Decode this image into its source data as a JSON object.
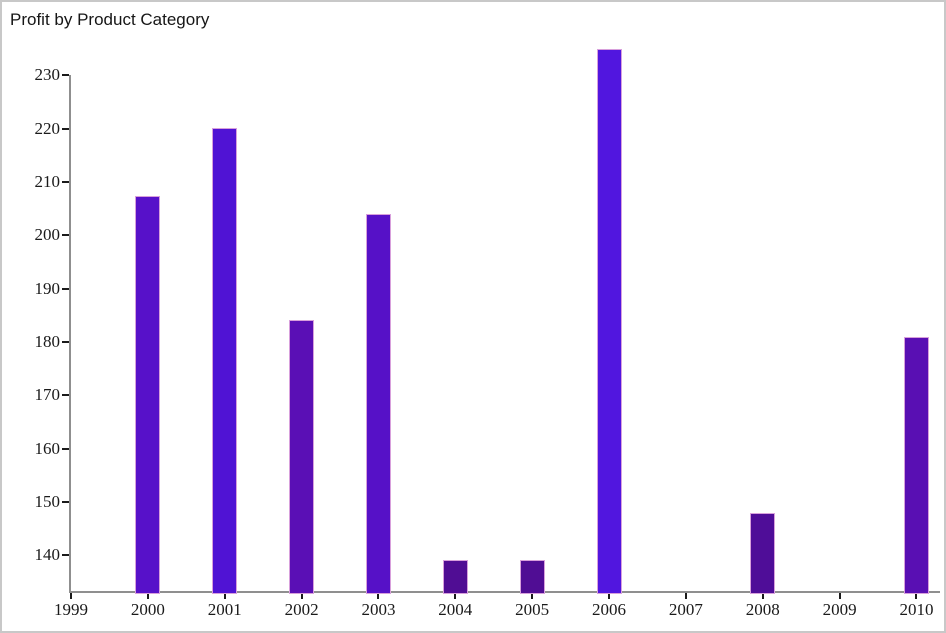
{
  "window": {
    "background": "#ffffff",
    "border_color": "#c8c8c8"
  },
  "chart_data": {
    "type": "bar",
    "title": "Profit by Product Category",
    "xlabel": "",
    "ylabel": "",
    "x_tick_labels": [
      "1999",
      "2000",
      "2001",
      "2002",
      "2003",
      "2004",
      "2005",
      "2006",
      "2007",
      "2008",
      "2009",
      "2010"
    ],
    "y_tick_values": [
      140,
      150,
      160,
      170,
      180,
      190,
      200,
      210,
      220,
      230
    ],
    "ylim": [
      133,
      237
    ],
    "grid": false,
    "legend": "none",
    "axis_line_color": "#8f8f8f",
    "tick_mark_color": "#1a1a1a",
    "label_color": "#1a1a1a",
    "bar_outline_color": "#d8a0dc",
    "bars": [
      {
        "year": "2000",
        "value": 207.3,
        "color": "#5711c9"
      },
      {
        "year": "2001",
        "value": 220.2,
        "color": "#5013d4"
      },
      {
        "year": "2002",
        "value": 184.2,
        "color": "#5a0fb5"
      },
      {
        "year": "2003",
        "value": 204.0,
        "color": "#5611c7"
      },
      {
        "year": "2004",
        "value": 139.1,
        "color": "#500d94"
      },
      {
        "year": "2005",
        "value": 139.1,
        "color": "#500d94"
      },
      {
        "year": "2006",
        "value": 234.9,
        "color": "#5116df"
      },
      {
        "year": "2008",
        "value": 147.9,
        "color": "#4f0d98"
      },
      {
        "year": "2010",
        "value": 180.9,
        "color": "#590fb3"
      }
    ]
  }
}
